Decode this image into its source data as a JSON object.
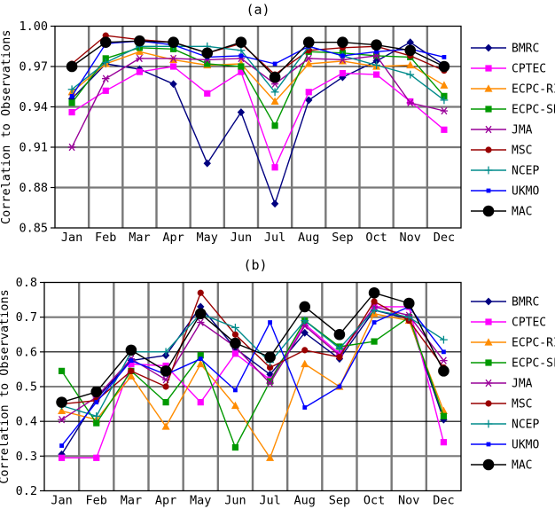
{
  "figure": {
    "type": "multi-line-chart-figure",
    "panel_count": 2
  },
  "chart_data": [
    {
      "type": "line",
      "title": "(a)",
      "xlabel": "",
      "ylabel": "Correlation to Observations",
      "ylim": [
        0.85,
        1.0
      ],
      "yticks": [
        1.0,
        0.97,
        0.94,
        0.91,
        0.88,
        0.85
      ],
      "ytick_labels": [
        "1.00",
        "0.97",
        "0.94",
        "0.91",
        "0.88",
        "0.85"
      ],
      "grid": "on",
      "legend_position": "right",
      "categories": [
        "Jan",
        "Feb",
        "Mar",
        "Apr",
        "May",
        "Jun",
        "Jul",
        "Aug",
        "Sep",
        "Oct",
        "Nov",
        "Dec"
      ],
      "series": [
        {
          "name": "BMRC",
          "color": "#000080",
          "marker": "diamond",
          "values": [
            0.946,
            0.972,
            0.968,
            0.957,
            0.898,
            0.936,
            0.868,
            0.945,
            0.962,
            0.974,
            0.988,
            0.971
          ]
        },
        {
          "name": "CPTEC",
          "color": "#FF00FF",
          "marker": "square",
          "values": [
            0.936,
            0.952,
            0.966,
            0.97,
            0.95,
            0.966,
            0.895,
            0.951,
            0.965,
            0.964,
            0.944,
            0.923
          ]
        },
        {
          "name": "ECPC-RII",
          "color": "#FF8C00",
          "marker": "triangle",
          "values": [
            0.951,
            0.972,
            0.981,
            0.975,
            0.971,
            0.972,
            0.944,
            0.972,
            0.974,
            0.97,
            0.971,
            0.956
          ]
        },
        {
          "name": "ECPC-SRM",
          "color": "#009900",
          "marker": "square",
          "values": [
            0.943,
            0.976,
            0.984,
            0.983,
            0.972,
            0.97,
            0.926,
            0.981,
            0.98,
            0.978,
            0.977,
            0.948
          ]
        },
        {
          "name": "JMA",
          "color": "#990099",
          "marker": "asterisk",
          "values": [
            0.91,
            0.961,
            0.976,
            0.976,
            0.975,
            0.976,
            0.957,
            0.976,
            0.975,
            0.978,
            0.943,
            0.937
          ]
        },
        {
          "name": "MSC",
          "color": "#990000",
          "marker": "circle",
          "values": [
            0.972,
            0.993,
            0.99,
            0.988,
            0.98,
            0.987,
            0.964,
            0.982,
            0.984,
            0.985,
            0.978,
            0.967
          ]
        },
        {
          "name": "NCEP",
          "color": "#008B8B",
          "marker": "plus",
          "values": [
            0.953,
            0.973,
            0.985,
            0.985,
            0.985,
            0.982,
            0.951,
            0.985,
            0.978,
            0.971,
            0.964,
            0.945
          ]
        },
        {
          "name": "UKMO",
          "color": "#0000FF",
          "marker": "square-small",
          "values": [
            0.948,
            0.987,
            0.989,
            0.986,
            0.977,
            0.978,
            0.972,
            0.985,
            0.978,
            0.981,
            0.983,
            0.977
          ]
        },
        {
          "name": "MAC",
          "color": "#000000",
          "marker": "circle-big",
          "values": [
            0.97,
            0.988,
            0.989,
            0.988,
            0.98,
            0.988,
            0.962,
            0.988,
            0.988,
            0.986,
            0.982,
            0.97
          ]
        }
      ]
    },
    {
      "type": "line",
      "title": "(b)",
      "xlabel": "",
      "ylabel": "Correlation to Observations",
      "ylim": [
        0.2,
        0.8
      ],
      "yticks": [
        0.8,
        0.7,
        0.6,
        0.5,
        0.4,
        0.3,
        0.2
      ],
      "ytick_labels": [
        "0.8",
        "0.7",
        "0.6",
        "0.5",
        "0.4",
        "0.3",
        "0.2"
      ],
      "grid": "on",
      "legend_position": "right",
      "categories": [
        "Jan",
        "Feb",
        "Mar",
        "Apr",
        "May",
        "Jun",
        "Jul",
        "Aug",
        "Sep",
        "Oct",
        "Nov",
        "Dec"
      ],
      "series": [
        {
          "name": "BMRC",
          "color": "#000080",
          "marker": "diamond",
          "values": [
            0.305,
            0.465,
            0.575,
            0.59,
            0.73,
            0.61,
            0.535,
            0.655,
            0.58,
            0.72,
            0.695,
            0.405
          ]
        },
        {
          "name": "CPTEC",
          "color": "#FF00FF",
          "marker": "square",
          "values": [
            0.295,
            0.295,
            0.565,
            0.56,
            0.455,
            0.595,
            0.52,
            0.68,
            0.595,
            0.73,
            0.73,
            0.34
          ]
        },
        {
          "name": "ECPC-RII",
          "color": "#FF8C00",
          "marker": "triangle",
          "values": [
            0.43,
            0.405,
            0.53,
            0.385,
            0.565,
            0.445,
            0.295,
            0.565,
            0.5,
            0.71,
            0.69,
            0.43
          ]
        },
        {
          "name": "ECPC-SFM",
          "color": "#009900",
          "marker": "square",
          "values": [
            0.545,
            0.395,
            0.545,
            0.455,
            0.59,
            0.325,
            0.515,
            0.69,
            0.615,
            0.63,
            0.7,
            0.415
          ]
        },
        {
          "name": "JMA",
          "color": "#990099",
          "marker": "asterisk",
          "values": [
            0.405,
            0.47,
            0.58,
            0.52,
            0.685,
            0.615,
            0.51,
            0.675,
            0.59,
            0.73,
            0.705,
            0.575
          ]
        },
        {
          "name": "MSC",
          "color": "#990000",
          "marker": "circle",
          "values": [
            0.45,
            0.46,
            0.545,
            0.5,
            0.77,
            0.65,
            0.555,
            0.605,
            0.585,
            0.745,
            0.69,
            0.555
          ]
        },
        {
          "name": "NCEP",
          "color": "#008B8B",
          "marker": "plus",
          "values": [
            0.445,
            0.415,
            0.6,
            0.6,
            0.71,
            0.67,
            0.57,
            0.69,
            0.61,
            0.72,
            0.7,
            0.635
          ]
        },
        {
          "name": "UKMO",
          "color": "#0000FF",
          "marker": "square-small",
          "values": [
            0.33,
            0.455,
            0.575,
            0.535,
            0.58,
            0.49,
            0.685,
            0.44,
            0.5,
            0.685,
            0.73,
            0.6
          ]
        },
        {
          "name": "MAC",
          "color": "#000000",
          "marker": "circle-big",
          "values": [
            0.455,
            0.485,
            0.605,
            0.545,
            0.71,
            0.625,
            0.585,
            0.73,
            0.65,
            0.77,
            0.74,
            0.545
          ]
        }
      ]
    }
  ]
}
